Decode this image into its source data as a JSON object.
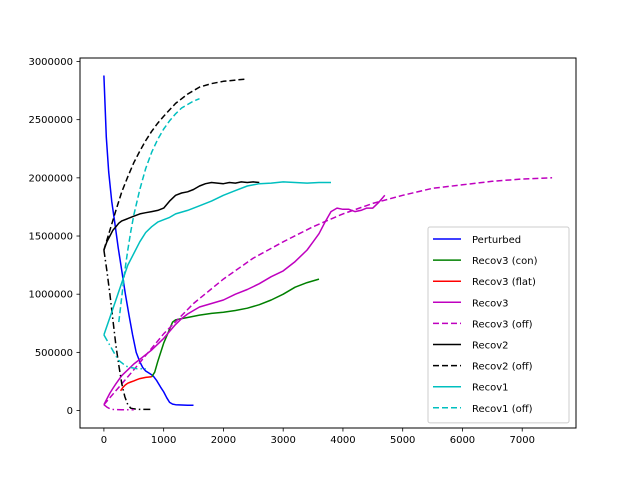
{
  "chart_data": {
    "type": "line",
    "title": "",
    "xlabel": "",
    "ylabel": "",
    "xlim": [
      -400,
      7900
    ],
    "ylim": [
      -150000,
      3030000
    ],
    "xticks": [
      0,
      1000,
      2000,
      3000,
      4000,
      5000,
      6000,
      7000
    ],
    "yticks": [
      0,
      500000,
      1000000,
      1500000,
      2000000,
      2500000,
      3000000
    ],
    "xtick_labels": [
      "0",
      "1000",
      "2000",
      "3000",
      "4000",
      "5000",
      "6000",
      "7000"
    ],
    "ytick_labels": [
      "0",
      "500000",
      "1000000",
      "1500000",
      "2000000",
      "2500000",
      "3000000"
    ],
    "grid": false,
    "legend_position": "lower-right",
    "series": [
      {
        "name": "Perturbed",
        "color": "#0000ff",
        "style": "solid",
        "x": [
          0,
          40,
          80,
          130,
          180,
          240,
          300,
          360,
          420,
          480,
          540,
          600,
          650,
          700,
          760,
          820,
          880,
          950,
          1000,
          1050,
          1100,
          1150,
          1200,
          1300,
          1400,
          1500
        ],
        "y": [
          2880000,
          2350000,
          2050000,
          1800000,
          1620000,
          1400000,
          1200000,
          1000000,
          820000,
          650000,
          500000,
          420000,
          370000,
          340000,
          320000,
          300000,
          260000,
          200000,
          160000,
          110000,
          70000,
          55000,
          50000,
          48000,
          46000,
          45000
        ]
      },
      {
        "name": "Recov3 (con)",
        "color": "#008000",
        "style": "solid",
        "x": [
          800,
          850,
          900,
          950,
          1000,
          1050,
          1100,
          1150,
          1200,
          1300,
          1400,
          1600,
          1800,
          2000,
          2200,
          2400,
          2600,
          2800,
          3000,
          3200,
          3400,
          3600
        ],
        "y": [
          290000,
          330000,
          420000,
          500000,
          580000,
          640000,
          700000,
          760000,
          780000,
          790000,
          800000,
          820000,
          835000,
          845000,
          860000,
          880000,
          910000,
          950000,
          1000000,
          1060000,
          1100000,
          1130000
        ]
      },
      {
        "name": "Recov3 (flat)",
        "color": "#ff0000",
        "style": "solid",
        "x": [
          280,
          320,
          360,
          400,
          450,
          500,
          550,
          600,
          700,
          800
        ],
        "y": [
          170000,
          200000,
          220000,
          235000,
          245000,
          255000,
          265000,
          275000,
          285000,
          290000
        ]
      },
      {
        "name": "Recov3",
        "color": "#bf00bf",
        "style": "solid",
        "x": [
          0,
          50,
          100,
          150,
          200,
          300,
          400,
          500,
          600,
          700,
          800,
          900,
          1000,
          1100,
          1200,
          1300,
          1400,
          1500,
          1600,
          1800,
          2000,
          2200,
          2400,
          2600,
          2800,
          3000,
          3200,
          3400,
          3500,
          3600,
          3700,
          3800,
          3900,
          4000,
          4100,
          4200,
          4300,
          4400,
          4500,
          4600,
          4700
        ],
        "y": [
          50000,
          100000,
          150000,
          190000,
          230000,
          300000,
          350000,
          400000,
          440000,
          480000,
          520000,
          570000,
          620000,
          680000,
          740000,
          790000,
          830000,
          860000,
          890000,
          920000,
          950000,
          1000000,
          1040000,
          1090000,
          1150000,
          1200000,
          1280000,
          1380000,
          1450000,
          1520000,
          1620000,
          1710000,
          1740000,
          1730000,
          1730000,
          1710000,
          1720000,
          1740000,
          1740000,
          1790000,
          1850000
        ]
      },
      {
        "name": "Recov3 (off)",
        "color": "#bf00bf",
        "style": "dashed",
        "x": [
          0,
          500,
          1000,
          1500,
          2000,
          2500,
          3000,
          3500,
          4000,
          4500,
          5000,
          5500,
          6000,
          6500,
          7000,
          7500
        ],
        "y": [
          50000,
          350000,
          660000,
          920000,
          1130000,
          1310000,
          1450000,
          1580000,
          1690000,
          1780000,
          1850000,
          1910000,
          1940000,
          1970000,
          1990000,
          2000000
        ]
      },
      {
        "name": "Recov2",
        "color": "#000000",
        "style": "solid",
        "x": [
          0,
          50,
          100,
          150,
          200,
          250,
          300,
          400,
          500,
          600,
          700,
          800,
          900,
          1000,
          1100,
          1200,
          1300,
          1400,
          1500,
          1600,
          1700,
          1800,
          1900,
          2000,
          2100,
          2200,
          2300,
          2400,
          2500,
          2600
        ],
        "y": [
          1380000,
          1450000,
          1500000,
          1550000,
          1580000,
          1610000,
          1630000,
          1650000,
          1670000,
          1690000,
          1700000,
          1710000,
          1720000,
          1740000,
          1800000,
          1850000,
          1870000,
          1880000,
          1900000,
          1930000,
          1950000,
          1960000,
          1955000,
          1950000,
          1960000,
          1955000,
          1965000,
          1960000,
          1965000,
          1960000
        ]
      },
      {
        "name": "Recov2 (off)",
        "color": "#000000",
        "style": "dashed",
        "x": [
          0,
          100,
          200,
          300,
          400,
          500,
          600,
          700,
          800,
          900,
          1000,
          1200,
          1400,
          1600,
          1800,
          2000,
          2200,
          2400
        ],
        "y": [
          1380000,
          1550000,
          1720000,
          1880000,
          2010000,
          2130000,
          2230000,
          2320000,
          2400000,
          2470000,
          2530000,
          2640000,
          2720000,
          2780000,
          2810000,
          2830000,
          2840000,
          2850000
        ]
      },
      {
        "name": "",
        "color": "#000000",
        "style": "dashdot",
        "x": [
          0,
          50,
          100,
          150,
          200,
          250,
          300,
          350,
          400,
          450,
          500,
          550,
          600,
          650,
          700,
          750,
          800
        ],
        "y": [
          1380000,
          1200000,
          1000000,
          780000,
          560000,
          390000,
          230000,
          120000,
          50000,
          20000,
          15000,
          12000,
          10000,
          10000,
          10000,
          10000,
          10000
        ]
      },
      {
        "name": "Recov1",
        "color": "#00bfbf",
        "style": "solid",
        "x": [
          0,
          100,
          200,
          300,
          400,
          500,
          600,
          700,
          800,
          900,
          1000,
          1100,
          1200,
          1400,
          1600,
          1800,
          2000,
          2200,
          2400,
          2600,
          2800,
          3000,
          3200,
          3400,
          3600,
          3800
        ],
        "y": [
          650000,
          800000,
          950000,
          1100000,
          1250000,
          1350000,
          1450000,
          1530000,
          1580000,
          1620000,
          1640000,
          1660000,
          1690000,
          1720000,
          1760000,
          1800000,
          1850000,
          1890000,
          1930000,
          1950000,
          1955000,
          1965000,
          1960000,
          1955000,
          1960000,
          1960000
        ]
      },
      {
        "name": "Recov1 (off)",
        "color": "#00bfbf",
        "style": "dashed",
        "x": [
          250,
          300,
          350,
          400,
          450,
          500,
          600,
          700,
          800,
          900,
          1000,
          1100,
          1200,
          1300,
          1400,
          1500,
          1600
        ],
        "y": [
          760000,
          980000,
          1200000,
          1380000,
          1540000,
          1680000,
          1900000,
          2080000,
          2220000,
          2330000,
          2420000,
          2490000,
          2550000,
          2600000,
          2630000,
          2660000,
          2680000
        ]
      },
      {
        "name": "",
        "color": "#00bfbf",
        "style": "dashdot",
        "x": [
          0,
          100,
          200,
          250,
          300,
          350,
          400,
          450,
          500,
          550,
          600,
          650,
          700
        ],
        "y": [
          650000,
          560000,
          470000,
          430000,
          410000,
          390000,
          375000,
          370000,
          365000,
          360000,
          360000,
          360000,
          360000
        ]
      },
      {
        "name": "",
        "color": "#bf00bf",
        "style": "dashdot",
        "x": [
          0,
          50,
          100,
          150,
          200,
          300,
          400,
          500
        ],
        "y": [
          50000,
          30000,
          15000,
          10000,
          8000,
          7000,
          7000,
          7000
        ]
      }
    ]
  }
}
